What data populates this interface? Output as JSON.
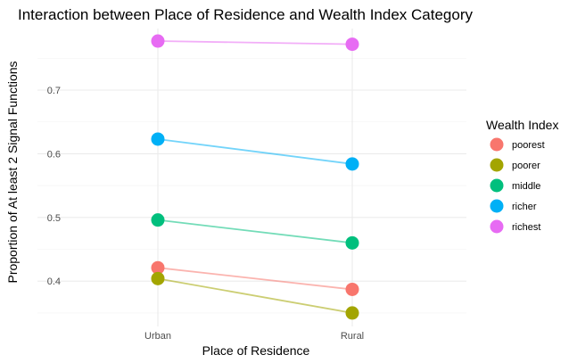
{
  "chart_data": {
    "type": "line",
    "title": "Interaction between Place of Residence and Wealth Index Category",
    "xlabel": "Place of Residence",
    "ylabel": "Proportion of At least 2 Signal Functions",
    "categories": [
      "Urban",
      "Rural"
    ],
    "yticks": [
      0.4,
      0.5,
      0.6,
      0.7
    ],
    "ylim": [
      0.335,
      0.79
    ],
    "grid": true,
    "legend": {
      "title": "Wealth Index",
      "placement": "right"
    },
    "series": [
      {
        "name": "poorest",
        "color": "#F8766D",
        "values": [
          0.421,
          0.387
        ]
      },
      {
        "name": "poorer",
        "color": "#A3A500",
        "values": [
          0.404,
          0.35
        ]
      },
      {
        "name": "middle",
        "color": "#00BF7D",
        "values": [
          0.496,
          0.46
        ]
      },
      {
        "name": "richer",
        "color": "#00B0F6",
        "values": [
          0.623,
          0.584
        ]
      },
      {
        "name": "richest",
        "color": "#E76BF3",
        "values": [
          0.777,
          0.772
        ]
      }
    ]
  }
}
